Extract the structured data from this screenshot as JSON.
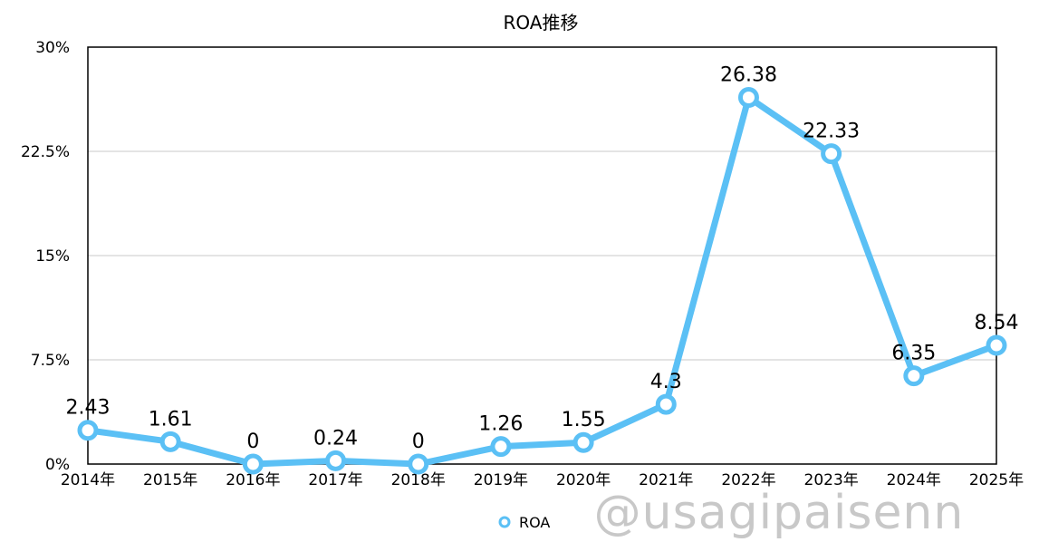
{
  "chart_data": {
    "type": "line",
    "title": "ROA推移",
    "categories": [
      "2014年",
      "2015年",
      "2016年",
      "2017年",
      "2018年",
      "2019年",
      "2020年",
      "2021年",
      "2022年",
      "2023年",
      "2024年",
      "2025年"
    ],
    "series": [
      {
        "name": "ROA",
        "values": [
          2.43,
          1.61,
          0,
          0.24,
          0,
          1.26,
          1.55,
          4.3,
          26.38,
          22.33,
          6.35,
          8.54
        ],
        "color": "#5bc0f5"
      }
    ],
    "data_labels": [
      "2.43",
      "1.61",
      "0",
      "0.24",
      "0",
      "1.26",
      "1.55",
      "4.3",
      "26.38",
      "22.33",
      "6.35",
      "8.54"
    ],
    "y_ticks": [
      {
        "value": 0,
        "label": "0%"
      },
      {
        "value": 7.5,
        "label": "7.5%"
      },
      {
        "value": 15,
        "label": "15%"
      },
      {
        "value": 22.5,
        "label": "22.5%"
      },
      {
        "value": 30,
        "label": "30%"
      }
    ],
    "ylim": [
      0,
      30
    ],
    "grid": true,
    "legend_position": "bottom-center"
  },
  "watermark": "@usagipaisenn"
}
